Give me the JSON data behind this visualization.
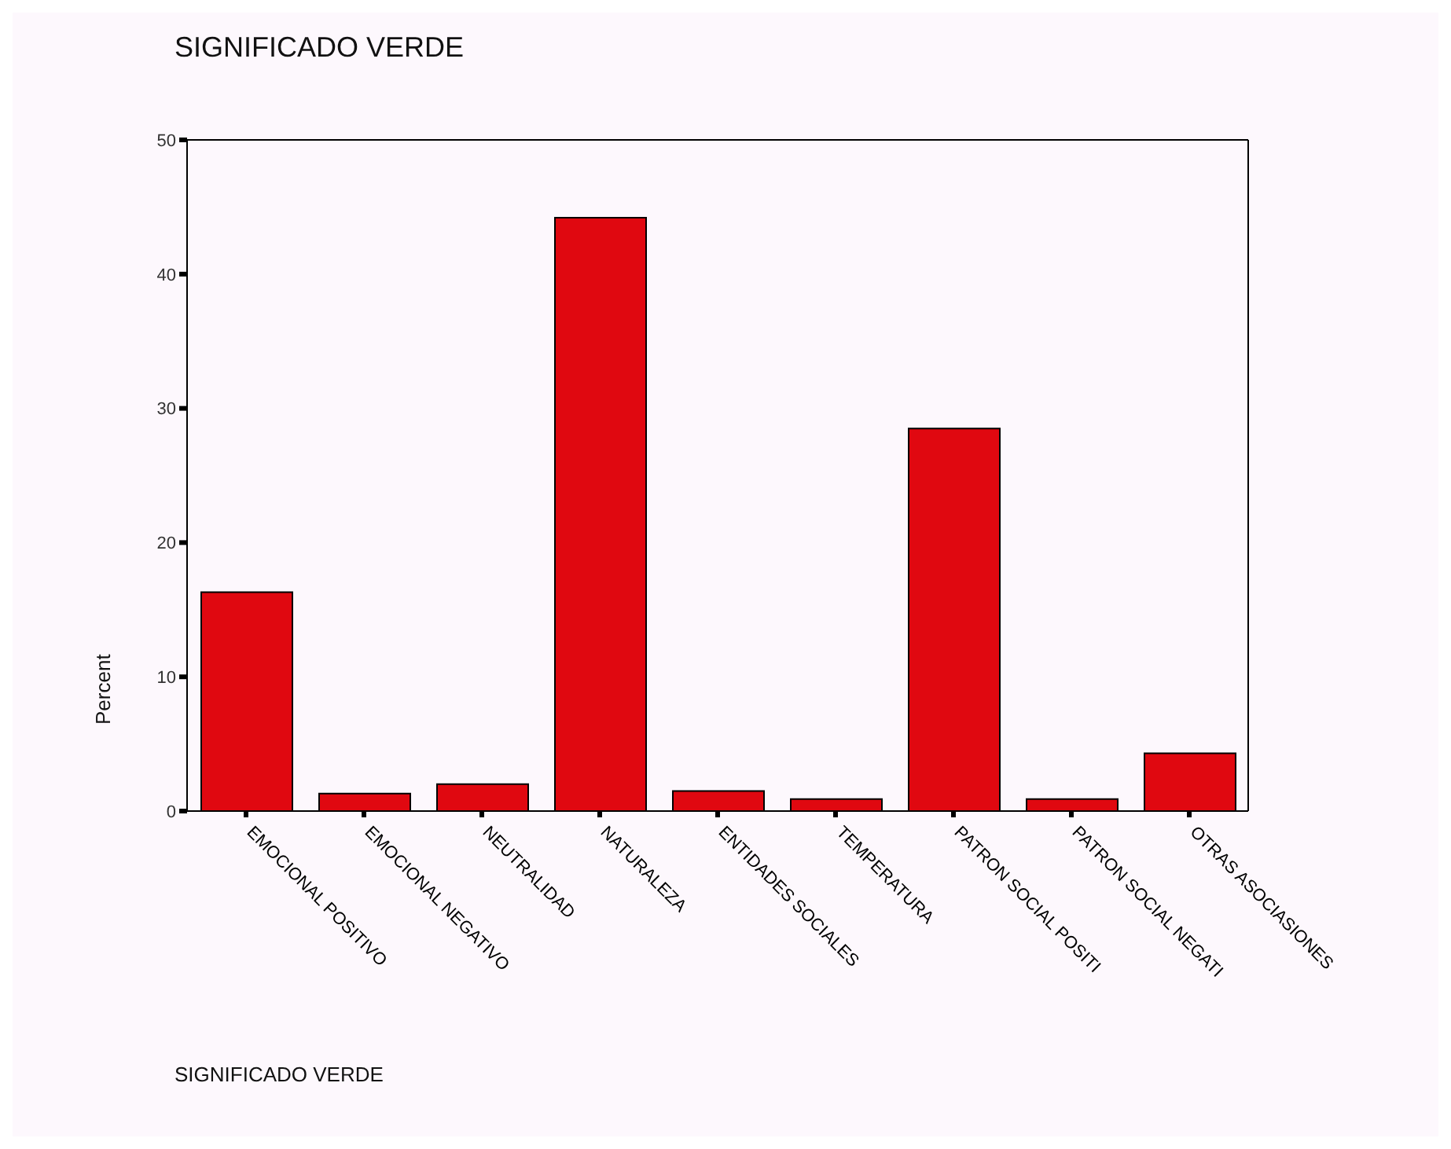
{
  "chart_data": {
    "type": "bar",
    "title": "SIGNIFICADO VERDE",
    "xlabel": "SIGNIFICADO VERDE",
    "ylabel": "Percent",
    "categories": [
      "EMOCIONAL POSITIVO",
      "EMOCIONAL NEGATIVO",
      "NEUTRALIDAD",
      "NATURALEZA",
      "ENTIDADES SOCIALES",
      "TEMPERATURA",
      "PATRON SOCIAL POSITI",
      "PATRON SOCIAL NEGATI",
      "OTRAS ASOCIASIONES"
    ],
    "values": [
      16.3,
      1.3,
      2.0,
      44.2,
      1.5,
      0.9,
      28.5,
      0.9,
      4.3
    ],
    "color": "#e00810",
    "ylim": [
      0,
      50
    ],
    "yticks": [
      0,
      10,
      20,
      30,
      40,
      50
    ],
    "grid": false,
    "legend": false
  }
}
